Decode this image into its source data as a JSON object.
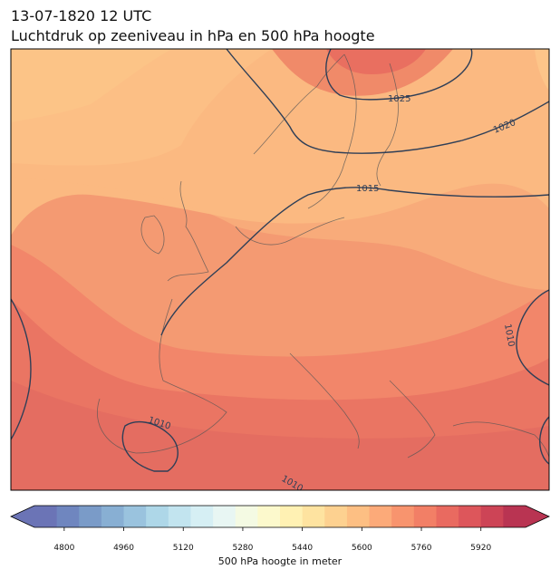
{
  "title": {
    "line1": "13-07-1820 12 UTC",
    "line2": "Luchtdruk op zeeniveau in hPa en 500 hPa hoogte"
  },
  "isobar_labels": [
    "1025",
    "1020",
    "1015",
    "1010",
    "1010",
    "1010"
  ],
  "colorbar": {
    "label": "500 hPa hoogte in meter",
    "ticks": [
      "4800",
      "4960",
      "5120",
      "5280",
      "5440",
      "5600",
      "5760",
      "5920"
    ],
    "colors": [
      "#6b74b6",
      "#6f86bf",
      "#7a9bc8",
      "#88afd3",
      "#9ac3de",
      "#aed7e8",
      "#c2e4ef",
      "#d6eff4",
      "#e8f6f3",
      "#f4fae3",
      "#fcf9cc",
      "#fff1b3",
      "#fee3a0",
      "#fdd190",
      "#fdbf83",
      "#fcaa79",
      "#f8946e",
      "#f27f66",
      "#e96a60",
      "#dd565b",
      "#cd4456",
      "#b93452"
    ]
  },
  "colors": {
    "land_border": "#555555",
    "isobar": "#2f3f57"
  }
}
